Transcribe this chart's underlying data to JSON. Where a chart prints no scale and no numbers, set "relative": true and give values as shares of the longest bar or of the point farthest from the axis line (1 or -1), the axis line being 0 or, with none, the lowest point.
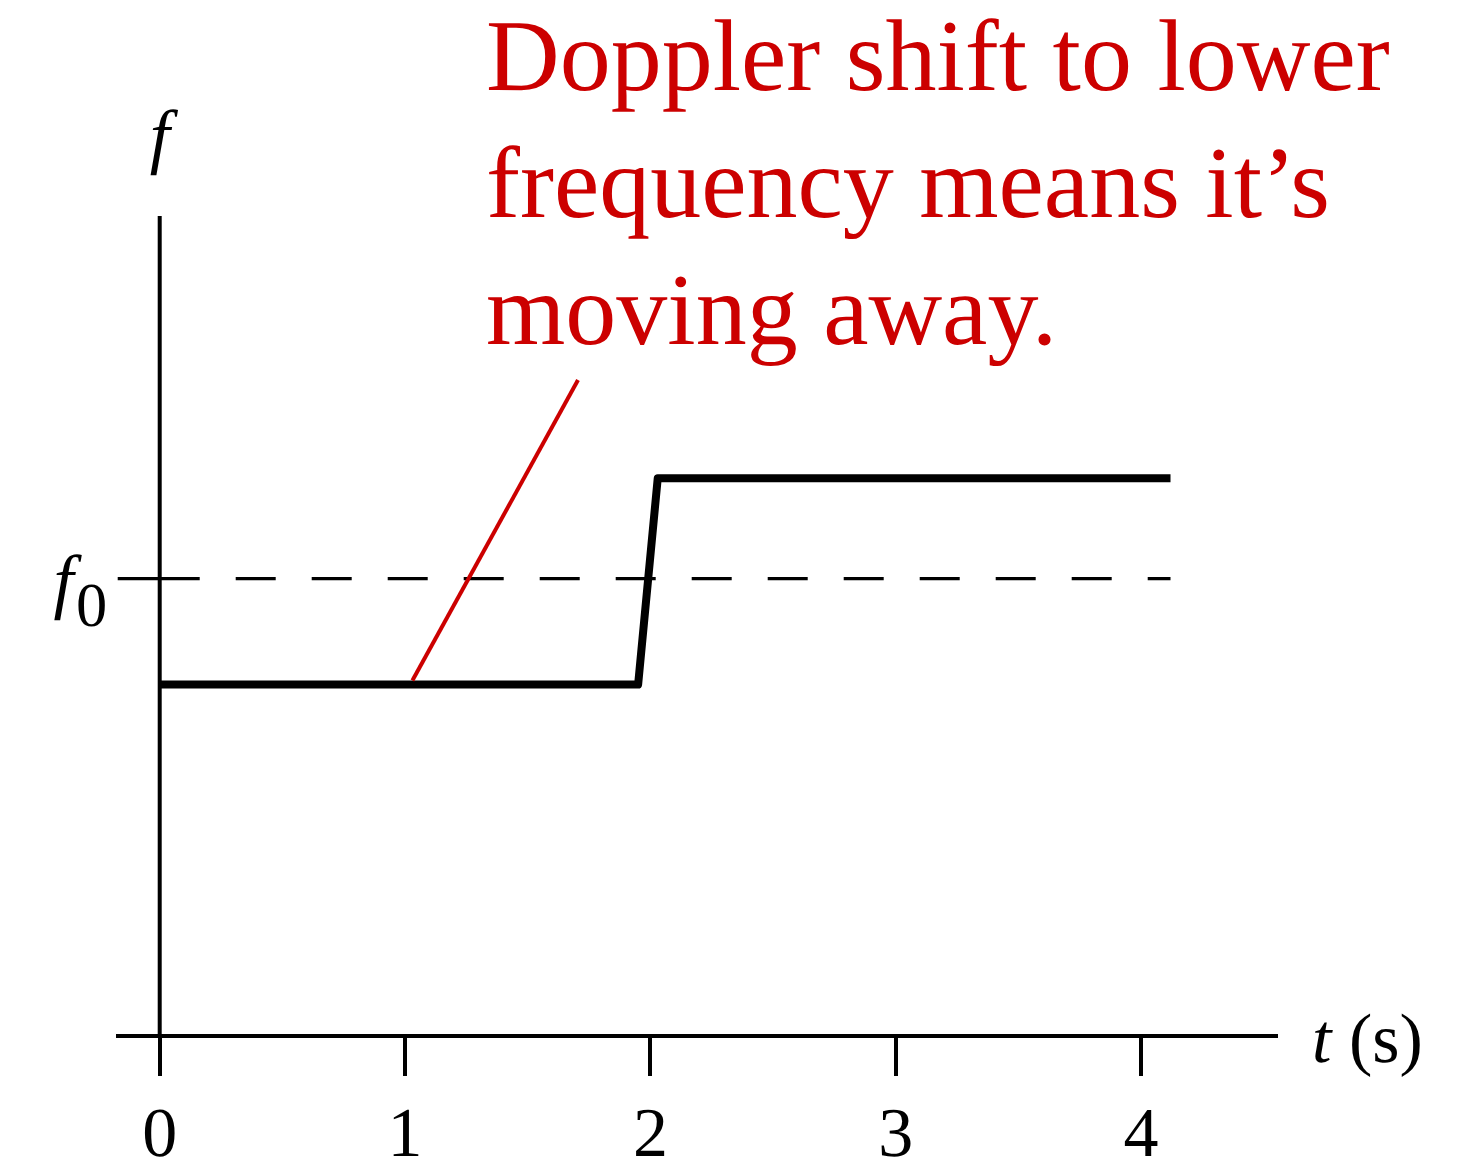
{
  "chart_data": {
    "type": "line",
    "xlabel": "t (s)",
    "ylabel": "f",
    "relative": true,
    "x": [
      0,
      1.95,
      2.03,
      4.12
    ],
    "series": [
      {
        "color": "#000000",
        "values": [
          0.63,
          0.63,
          1,
          1
        ]
      }
    ],
    "xlim": [
      -0.17,
      4.55
    ],
    "xticks": [
      0,
      1,
      2,
      3,
      4
    ],
    "ref_lines": [
      {
        "axis": "y",
        "value": 0.82,
        "label": "f₀",
        "line_style": "dashed",
        "color": "#000000"
      }
    ],
    "annotations": [
      {
        "text": "Doppler shift to lower frequency means it’s moving away.",
        "x": 1.03,
        "y": 0.63
      }
    ]
  }
}
